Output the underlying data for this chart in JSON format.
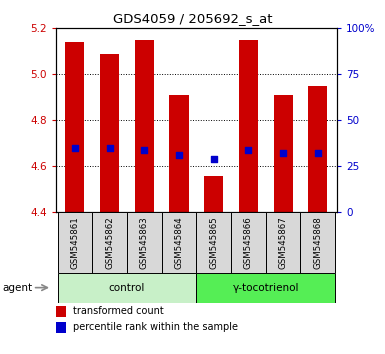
{
  "title": "GDS4059 / 205692_s_at",
  "samples": [
    "GSM545861",
    "GSM545862",
    "GSM545863",
    "GSM545864",
    "GSM545865",
    "GSM545866",
    "GSM545867",
    "GSM545868"
  ],
  "transformed_counts": [
    5.14,
    5.09,
    5.15,
    4.91,
    4.56,
    5.15,
    4.91,
    4.95
  ],
  "percentile_ranks": [
    4.68,
    4.68,
    4.67,
    4.65,
    4.63,
    4.67,
    4.66,
    4.66
  ],
  "ylim_left": [
    4.4,
    5.2
  ],
  "ylim_right": [
    0,
    100
  ],
  "yticks_left": [
    4.4,
    4.6,
    4.8,
    5.0,
    5.2
  ],
  "yticks_right": [
    0,
    25,
    50,
    75,
    100
  ],
  "ytick_labels_right": [
    "0",
    "25",
    "50",
    "75",
    "100%"
  ],
  "bar_color": "#cc0000",
  "bar_bottom": 4.4,
  "blue_color": "#0000cc",
  "blue_size": 18,
  "group_labels": [
    "control",
    "γ-tocotrienol"
  ],
  "group_ranges": [
    [
      0,
      3
    ],
    [
      4,
      7
    ]
  ],
  "group_colors_light": "#c8f0c8",
  "group_colors_dark": "#55ee55",
  "label_color_left": "#cc0000",
  "label_color_right": "#0000cc",
  "grid_color": "#000000",
  "sample_bg_color": "#d8d8d8",
  "plot_bg": "#ffffff",
  "agent_label": "agent",
  "legend_items": [
    "transformed count",
    "percentile rank within the sample"
  ]
}
